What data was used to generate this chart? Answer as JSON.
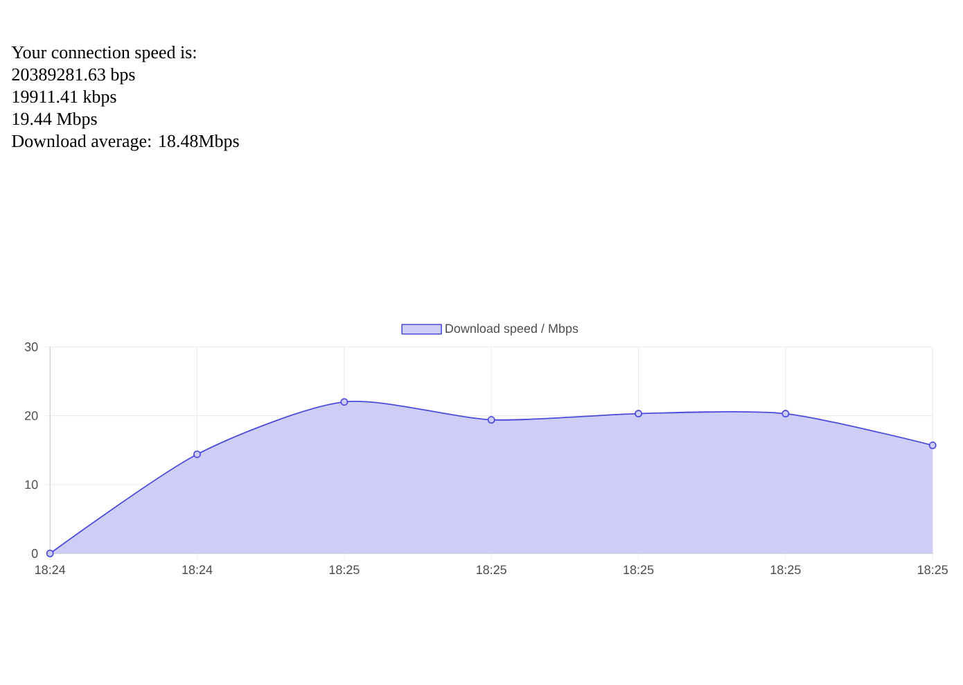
{
  "chart_data": {
    "type": "area",
    "annotations": [
      "Your connection speed is:",
      "20389281.63 bps",
      "19911.41 kbps",
      "19.44 Mbps",
      "Download average: 18.48Mbps"
    ],
    "categories": [
      "18:24",
      "18:24",
      "18:25",
      "18:25",
      "18:25",
      "18:25",
      "18:25"
    ],
    "series": [
      {
        "name": "Download speed / Mbps",
        "color": "#4b4bdc",
        "values": [
          0,
          14.4,
          22,
          19.4,
          20.3,
          20.3,
          15.7
        ]
      }
    ],
    "ylim": [
      0,
      30
    ],
    "yticks": [
      0,
      10,
      20,
      30
    ],
    "grid": true,
    "legend": "top",
    "marker": "circle"
  }
}
